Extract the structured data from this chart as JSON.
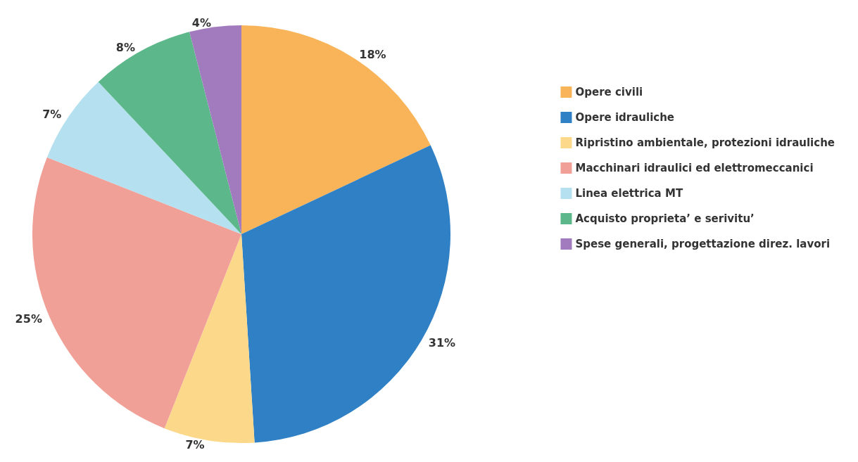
{
  "chart_data": {
    "type": "pie",
    "categories": [
      "Opere civili",
      "Opere idrauliche",
      "Ripristino ambientale, protezioni idrauliche",
      "Macchinari idraulici ed elettromeccanici",
      "Linea elettrica MT",
      "Acquisto proprieta’ e serivitu’",
      "Spese generali, progettazione direz. lavori"
    ],
    "values": [
      18,
      31,
      7,
      25,
      7,
      8,
      4
    ],
    "value_labels": [
      "18%",
      "31%",
      "7%",
      "25%",
      "7%",
      "8%",
      "4%"
    ],
    "colors": [
      "#f9b45a",
      "#2f80c4",
      "#fcd98a",
      "#f0a097",
      "#b5e0f0",
      "#5cb88a",
      "#a27bbf"
    ],
    "legend": "right"
  }
}
